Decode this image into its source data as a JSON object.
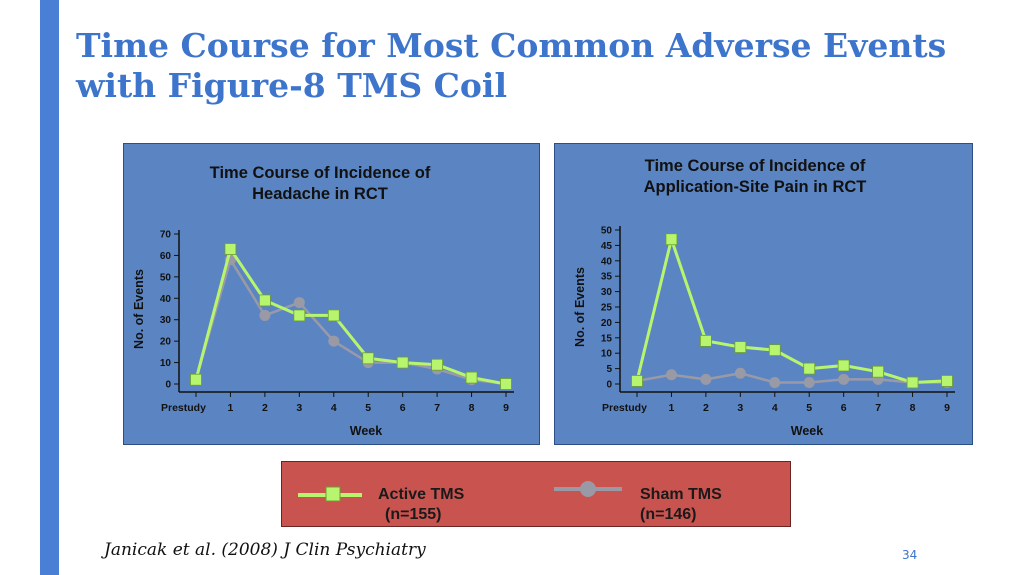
{
  "slide": {
    "title_line1": "Time Course for Most Common Adverse Events",
    "title_line2": "with Figure-8 TMS Coil",
    "citation": "Janicak et al. (2008) J Clin Psychiatry",
    "page_number": "34"
  },
  "colors": {
    "accent": "#4a7fd6",
    "title": "#3d74cc",
    "panel_bg": "#5b85c2",
    "legend_bg": "#c9534f",
    "active": "#b8f56e",
    "sham": "#9a9aa6"
  },
  "legend": {
    "active_label": "Active TMS",
    "active_n": "(n=155)",
    "sham_label": "Sham TMS",
    "sham_n": "(n=146)"
  },
  "chart_data": [
    {
      "type": "line",
      "title": "Time Course of Incidence of\nHeadache in RCT",
      "xlabel": "Week",
      "ylabel": "No. of Events",
      "categories": [
        "Prestudy",
        "1",
        "2",
        "3",
        "4",
        "5",
        "6",
        "7",
        "8",
        "9"
      ],
      "ylim": [
        0,
        70
      ],
      "yticks": [
        0,
        10,
        20,
        30,
        40,
        50,
        60,
        70
      ],
      "grid": false,
      "series": [
        {
          "name": "Active TMS",
          "values": [
            2,
            63,
            39,
            32,
            32,
            12,
            10,
            9,
            3,
            0
          ]
        },
        {
          "name": "Sham TMS",
          "values": [
            2,
            58,
            32,
            38,
            20,
            10,
            10,
            7,
            2,
            0
          ]
        }
      ]
    },
    {
      "type": "line",
      "title": "Time Course of Incidence of\nApplication-Site Pain in RCT",
      "xlabel": "Week",
      "ylabel": "No. of Events",
      "categories": [
        "Prestudy",
        "1",
        "2",
        "3",
        "4",
        "5",
        "6",
        "7",
        "8",
        "9"
      ],
      "ylim": [
        0,
        50
      ],
      "yticks": [
        0,
        5,
        10,
        15,
        20,
        25,
        30,
        35,
        40,
        45,
        50
      ],
      "grid": false,
      "series": [
        {
          "name": "Active TMS",
          "values": [
            1,
            47,
            14,
            12,
            11,
            5,
            6,
            4,
            0.5,
            1
          ]
        },
        {
          "name": "Sham TMS",
          "values": [
            1,
            3,
            1.5,
            3.5,
            0.5,
            0.5,
            1.5,
            1.5,
            0.5,
            0.5
          ]
        }
      ]
    }
  ]
}
